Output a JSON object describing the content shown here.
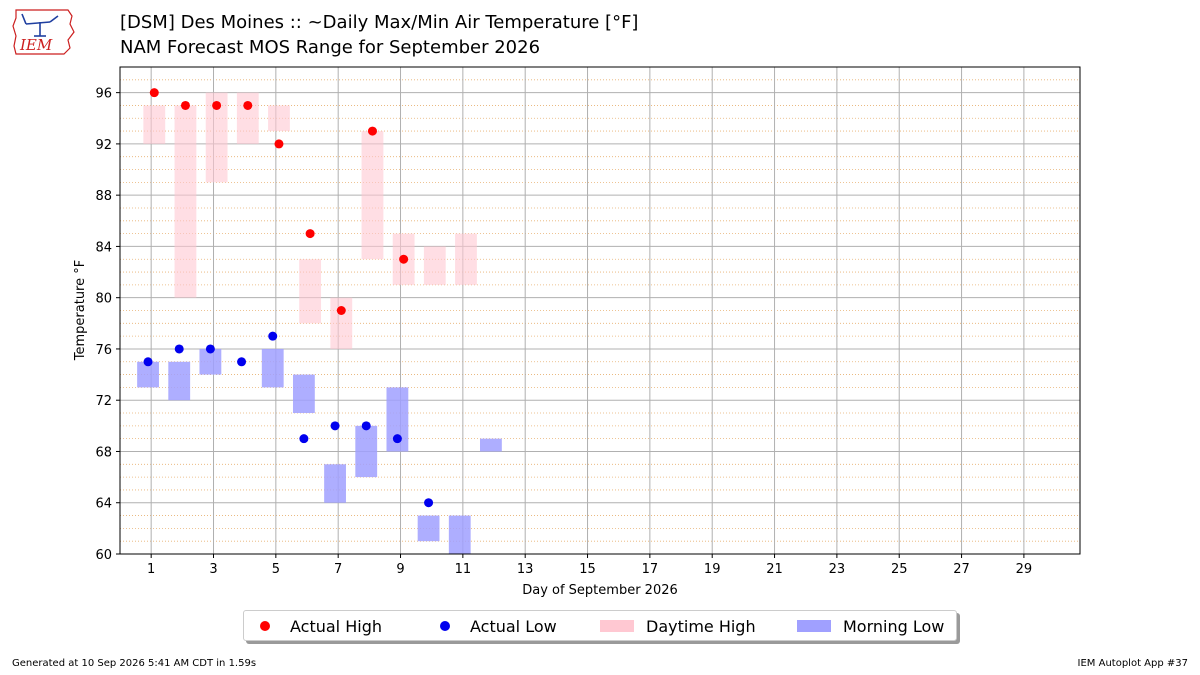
{
  "header": {
    "logo_text": "IEM",
    "title_line1": "[DSM] Des Moines :: ~Daily Max/Min Air Temperature [°F]",
    "title_line2": "NAM Forecast MOS Range for September 2026"
  },
  "colors": {
    "actual_high": "#ff0000",
    "actual_low": "#0000ee",
    "daytime_high": "#ffc8d2",
    "morning_low": "#a0a0ff",
    "logo_red": "#cc1f1f",
    "logo_blue": "#1f3fa0"
  },
  "chart_data": {
    "type": "scatter",
    "xlabel": "Day of September 2026",
    "ylabel": "Temperature °F",
    "xlim": [
      0.0,
      30.8
    ],
    "ylim": [
      60,
      98
    ],
    "xticks": [
      1,
      3,
      5,
      7,
      9,
      11,
      13,
      15,
      17,
      19,
      21,
      23,
      25,
      27,
      29
    ],
    "yticks": [
      60,
      64,
      68,
      72,
      76,
      80,
      84,
      88,
      92,
      96
    ],
    "grid": true,
    "minor_grid_step": 1,
    "legend_position": "bottom-center",
    "actual_high": [
      {
        "day": 1,
        "value": 96
      },
      {
        "day": 2,
        "value": 95
      },
      {
        "day": 3,
        "value": 95
      },
      {
        "day": 4,
        "value": 95
      },
      {
        "day": 5,
        "value": 92
      },
      {
        "day": 6,
        "value": 85
      },
      {
        "day": 7,
        "value": 79
      },
      {
        "day": 8,
        "value": 93
      },
      {
        "day": 9,
        "value": 83
      }
    ],
    "actual_low": [
      {
        "day": 1,
        "value": 75
      },
      {
        "day": 2,
        "value": 76
      },
      {
        "day": 3,
        "value": 76
      },
      {
        "day": 4,
        "value": 75
      },
      {
        "day": 5,
        "value": 77
      },
      {
        "day": 6,
        "value": 69
      },
      {
        "day": 7,
        "value": 70
      },
      {
        "day": 8,
        "value": 70
      },
      {
        "day": 9,
        "value": 69
      },
      {
        "day": 10,
        "value": 64
      }
    ],
    "daytime_high_range": [
      {
        "day": 1,
        "min": 92,
        "max": 95
      },
      {
        "day": 2,
        "min": 80,
        "max": 95
      },
      {
        "day": 3,
        "min": 89,
        "max": 96
      },
      {
        "day": 4,
        "min": 92,
        "max": 96
      },
      {
        "day": 5,
        "min": 93,
        "max": 95
      },
      {
        "day": 6,
        "min": 78,
        "max": 83
      },
      {
        "day": 7,
        "min": 76,
        "max": 80
      },
      {
        "day": 8,
        "min": 83,
        "max": 93
      },
      {
        "day": 9,
        "min": 81,
        "max": 85
      },
      {
        "day": 10,
        "min": 81,
        "max": 84
      },
      {
        "day": 11,
        "min": 81,
        "max": 85
      }
    ],
    "morning_low_range": [
      {
        "day": 1,
        "min": 73,
        "max": 75
      },
      {
        "day": 2,
        "min": 72,
        "max": 75
      },
      {
        "day": 3,
        "min": 74,
        "max": 76
      },
      {
        "day": 5,
        "min": 73,
        "max": 76
      },
      {
        "day": 6,
        "min": 71,
        "max": 74
      },
      {
        "day": 7,
        "min": 64,
        "max": 67
      },
      {
        "day": 8,
        "min": 66,
        "max": 70
      },
      {
        "day": 9,
        "min": 68,
        "max": 73
      },
      {
        "day": 10,
        "min": 61,
        "max": 63
      },
      {
        "day": 11,
        "min": 60,
        "max": 63
      },
      {
        "day": 12,
        "min": 68,
        "max": 69
      }
    ],
    "legend": [
      "Actual High",
      "Actual Low",
      "Daytime High",
      "Morning Low"
    ]
  },
  "footer": {
    "generated": "Generated at 10 Sep 2026 5:41 AM CDT in 1.59s",
    "app": "IEM Autoplot App #37"
  }
}
